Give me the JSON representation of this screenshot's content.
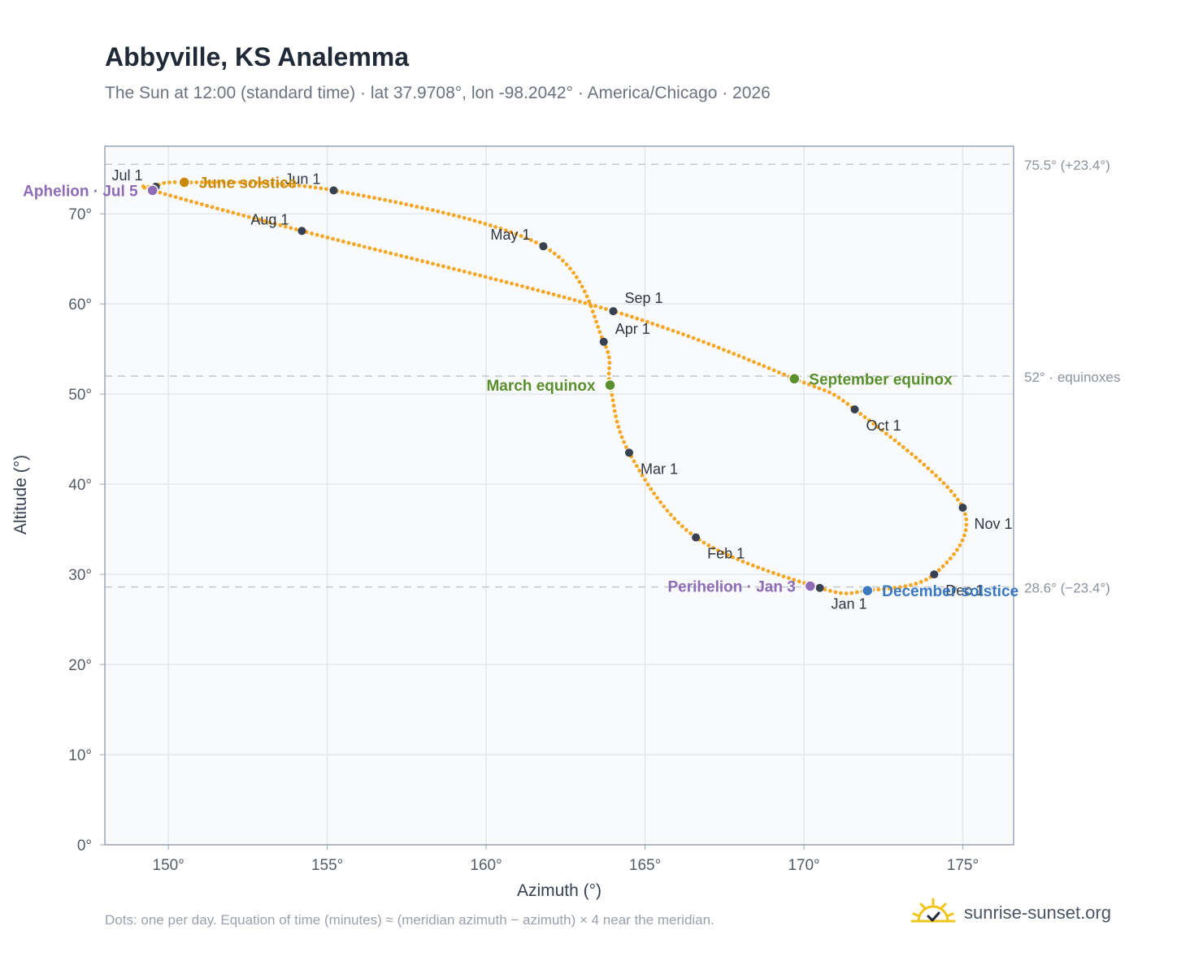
{
  "header": {
    "title": "Abbyville, KS Analemma",
    "subtitle": "The Sun at 12:00 (standard time) · lat 37.9708°, lon -98.2042° · America/Chicago · 2026"
  },
  "footer": {
    "note": "Dots: one per day. Equation of time (minutes) ≈ (meridian azimuth − azimuth) × 4 near the meridian.",
    "brand": "sunrise-sunset.org",
    "brand_icon": "sun-logo-icon"
  },
  "colors": {
    "curve": "#f5a623",
    "month_marker": "#374151",
    "june_solstice": "#c98a0b",
    "equinox": "#5a8f2e",
    "december_solstice": "#3a78c0",
    "aphelion_perihelion": "#8e6bb5",
    "reference_line": "#c3c8cf",
    "grid": "#e3e7ec",
    "plot_background": "#f8fafc"
  },
  "chart_data": {
    "type": "scatter",
    "xlabel": "Azimuth (°)",
    "ylabel": "Altitude (°)",
    "xlim": [
      148,
      176.6
    ],
    "ylim": [
      0,
      77.5
    ],
    "x_ticks": [
      150,
      155,
      160,
      165,
      170,
      175
    ],
    "y_ticks": [
      0,
      10,
      20,
      30,
      40,
      50,
      60,
      70
    ],
    "tick_suffix": "°",
    "grid": true,
    "series": [
      {
        "path_keypoints": [
          {
            "date": "Jan 1",
            "x": 170.5,
            "y": 28.5
          },
          {
            "date": "Feb 1",
            "x": 166.6,
            "y": 34.1
          },
          {
            "date": "Mar 1",
            "x": 164.5,
            "y": 43.5
          },
          {
            "date": "Mar 20",
            "x": 163.9,
            "y": 51.0
          },
          {
            "date": "Apr 1",
            "x": 163.7,
            "y": 55.8
          },
          {
            "date": "May 1",
            "x": 161.8,
            "y": 66.4
          },
          {
            "date": "Jun 1",
            "x": 155.2,
            "y": 72.6
          },
          {
            "date": "Jun 21",
            "x": 150.5,
            "y": 73.5
          },
          {
            "date": "Jul 1",
            "x": 149.6,
            "y": 73.0
          },
          {
            "date": "Jul 5",
            "x": 149.5,
            "y": 72.6
          },
          {
            "date": "Aug 1",
            "x": 154.2,
            "y": 68.1
          },
          {
            "date": "Sep 1",
            "x": 164.0,
            "y": 59.2
          },
          {
            "date": "Sep 22",
            "x": 169.7,
            "y": 51.7
          },
          {
            "date": "Oct 1",
            "x": 171.6,
            "y": 48.3
          },
          {
            "date": "Nov 1",
            "x": 175.0,
            "y": 37.4
          },
          {
            "date": "Dec 1",
            "x": 174.1,
            "y": 30.0
          },
          {
            "date": "Dec 21",
            "x": 172.0,
            "y": 28.2
          }
        ]
      }
    ],
    "month_markers": [
      {
        "label": "Jan 1",
        "x": 170.5,
        "y": 28.5,
        "label_pos": "below-right"
      },
      {
        "label": "Feb 1",
        "x": 166.6,
        "y": 34.1,
        "label_pos": "below-right"
      },
      {
        "label": "Mar 1",
        "x": 164.5,
        "y": 43.5,
        "label_pos": "below-right"
      },
      {
        "label": "Apr 1",
        "x": 163.7,
        "y": 55.8,
        "label_pos": "above-right"
      },
      {
        "label": "May 1",
        "x": 161.8,
        "y": 66.4,
        "label_pos": "above-left"
      },
      {
        "label": "Jun 1",
        "x": 155.2,
        "y": 72.6,
        "label_pos": "above-left"
      },
      {
        "label": "Jul 1",
        "x": 149.6,
        "y": 73.0,
        "label_pos": "above-left"
      },
      {
        "label": "Aug 1",
        "x": 154.2,
        "y": 68.1,
        "label_pos": "above-left"
      },
      {
        "label": "Sep 1",
        "x": 164.0,
        "y": 59.2,
        "label_pos": "above-right"
      },
      {
        "label": "Oct 1",
        "x": 171.6,
        "y": 48.3,
        "label_pos": "below-right"
      },
      {
        "label": "Nov 1",
        "x": 175.0,
        "y": 37.4,
        "label_pos": "below-right"
      },
      {
        "label": "Dec 1",
        "x": 174.1,
        "y": 30.0,
        "label_pos": "below-right"
      }
    ],
    "special_points": [
      {
        "label": "June solstice",
        "x": 150.5,
        "y": 73.5,
        "color_key": "june_solstice",
        "label_pos": "right"
      },
      {
        "label": "March equinox",
        "x": 163.9,
        "y": 51.0,
        "color_key": "equinox",
        "label_pos": "left"
      },
      {
        "label": "September equinox",
        "x": 169.7,
        "y": 51.7,
        "color_key": "equinox",
        "label_pos": "right"
      },
      {
        "label": "December solstice",
        "x": 172.0,
        "y": 28.2,
        "color_key": "december_solstice",
        "label_pos": "right"
      },
      {
        "label": "Aphelion · Jul 5",
        "x": 149.5,
        "y": 72.6,
        "color_key": "aphelion_perihelion",
        "label_pos": "left"
      },
      {
        "label": "Perihelion · Jan 3",
        "x": 170.2,
        "y": 28.7,
        "color_key": "aphelion_perihelion",
        "label_pos": "left"
      }
    ],
    "reference_lines": [
      {
        "y": 75.5,
        "label": "75.5° (+23.4°)"
      },
      {
        "y": 52.0,
        "label": "52° · equinoxes"
      },
      {
        "y": 28.6,
        "label": "28.6° (−23.4°)"
      }
    ]
  }
}
